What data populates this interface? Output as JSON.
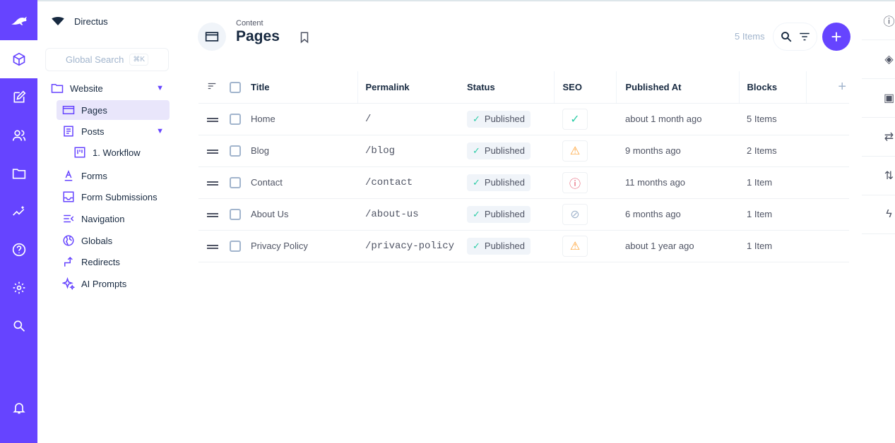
{
  "project": {
    "name": "Directus"
  },
  "search": {
    "placeholder": "Global Search",
    "shortcut": "⌘K"
  },
  "nav": [
    {
      "label": "Website",
      "icon": "folder-star-icon",
      "expandable": true
    },
    {
      "label": "Pages",
      "icon": "browser-window-icon",
      "active": true
    },
    {
      "label": "Posts",
      "icon": "article-icon",
      "expandable": true
    },
    {
      "label": "1. Workflow",
      "icon": "kanban-icon"
    },
    {
      "label": "Forms",
      "icon": "text-format-icon"
    },
    {
      "label": "Form Submissions",
      "icon": "inbox-icon"
    },
    {
      "label": "Navigation",
      "icon": "menu-open-icon"
    },
    {
      "label": "Globals",
      "icon": "globe-icon"
    },
    {
      "label": "Redirects",
      "icon": "redirect-arrow-icon"
    },
    {
      "label": "AI Prompts",
      "icon": "sparkles-icon"
    }
  ],
  "header": {
    "breadcrumb": "Content",
    "title": "Pages",
    "count": "5 Items"
  },
  "table": {
    "columns": [
      "Title",
      "Permalink",
      "Status",
      "SEO",
      "Published At",
      "Blocks"
    ],
    "rows": [
      {
        "title": "Home",
        "permalink": "/",
        "status": "Published",
        "seo": "check",
        "published": "about 1 month ago",
        "blocks": "5 Items"
      },
      {
        "title": "Blog",
        "permalink": "/blog",
        "status": "Published",
        "seo": "warning",
        "published": "9 months ago",
        "blocks": "2 Items"
      },
      {
        "title": "Contact",
        "permalink": "/contact",
        "status": "Published",
        "seo": "error",
        "published": "11 months ago",
        "blocks": "1 Item"
      },
      {
        "title": "About Us",
        "permalink": "/about-us",
        "status": "Published",
        "seo": "hidden",
        "published": "6 months ago",
        "blocks": "1 Item"
      },
      {
        "title": "Privacy Policy",
        "permalink": "/privacy-policy",
        "status": "Published",
        "seo": "warning",
        "published": "about 1 year ago",
        "blocks": "1 Item"
      }
    ]
  },
  "colors": {
    "accent": "#6644ff",
    "success": "#2ecda7",
    "warning": "#ffa439",
    "danger": "#e35169"
  }
}
